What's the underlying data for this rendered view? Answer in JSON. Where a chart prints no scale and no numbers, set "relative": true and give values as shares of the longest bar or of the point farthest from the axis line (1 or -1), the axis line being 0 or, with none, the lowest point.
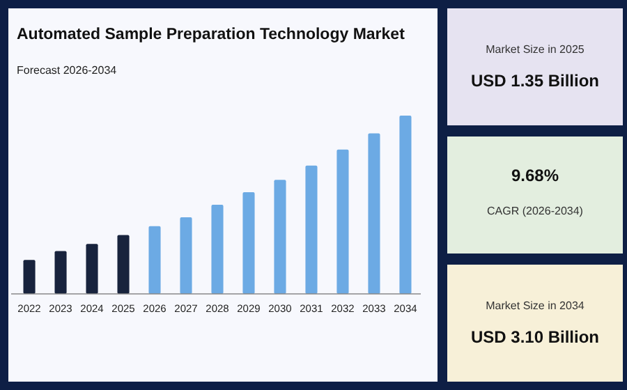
{
  "chart_data": [
    {
      "type": "bar",
      "title": "Automated Sample Preparation Technology Market",
      "subtitle": "Forecast 2026-2034",
      "relative": true,
      "categories": [
        "2022",
        "2023",
        "2024",
        "2025",
        "2026",
        "2027",
        "2028",
        "2029",
        "2030",
        "2031",
        "2032",
        "2033",
        "2034"
      ],
      "values": [
        0.19,
        0.24,
        0.28,
        0.33,
        0.38,
        0.43,
        0.5,
        0.57,
        0.64,
        0.72,
        0.81,
        0.9,
        1
      ],
      "colors": [
        "#18233d",
        "#18233d",
        "#18233d",
        "#18233d",
        "#6caae4",
        "#6caae4",
        "#6caae4",
        "#6caae4",
        "#6caae4",
        "#6caae4",
        "#6caae4",
        "#6caae4",
        "#6caae4"
      ]
    },
    {
      "type": "other",
      "annotations": [
        "Market Size in 2025",
        "USD 1.35 Billion"
      ]
    },
    {
      "type": "other",
      "annotations": [
        "9.68%",
        "CAGR (2026-2034)"
      ]
    },
    {
      "type": "other",
      "annotations": [
        "Market Size in 2034",
        "USD 3.10 Billion"
      ]
    }
  ]
}
